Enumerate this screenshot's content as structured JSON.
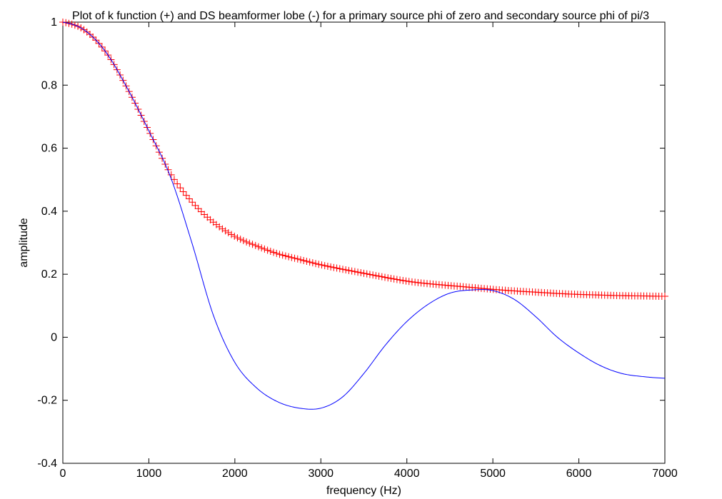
{
  "chart_data": {
    "type": "line",
    "title": "Plot of k function (+) and DS beamformer lobe (-) for a primary source phi of zero and secondary source phi of pi/3",
    "xlabel": "frequency (Hz)",
    "ylabel": "amplitude",
    "xlim": [
      0,
      7000
    ],
    "ylim": [
      -0.4,
      1
    ],
    "xticks": [
      0,
      1000,
      2000,
      3000,
      4000,
      5000,
      6000,
      7000
    ],
    "xtick_labels": [
      "0",
      "1000",
      "2000",
      "3000",
      "4000",
      "5000",
      "6000",
      "7000"
    ],
    "yticks": [
      -0.4,
      -0.2,
      0,
      0.2,
      0.4,
      0.6,
      0.8,
      1
    ],
    "ytick_labels": [
      "-0.4",
      "-0.2",
      "0",
      "0.2",
      "0.4",
      "0.6",
      "0.8",
      "1"
    ],
    "grid": false,
    "legend": "none",
    "series": [
      {
        "marker": "plus",
        "color": "#ff0000",
        "line": "none",
        "x": [
          0,
          250,
          500,
          750,
          1000,
          1250,
          1500,
          1750,
          2000,
          2250,
          2500,
          2750,
          3000,
          3250,
          3500,
          3750,
          4000,
          4250,
          4500,
          4750,
          5000,
          5250,
          5500,
          5750,
          6000,
          6250,
          6500,
          6750,
          7000
        ],
        "y": [
          1.0,
          0.975,
          0.905,
          0.79,
          0.655,
          0.52,
          0.43,
          0.365,
          0.32,
          0.29,
          0.265,
          0.247,
          0.23,
          0.216,
          0.203,
          0.19,
          0.178,
          0.17,
          0.164,
          0.158,
          0.152,
          0.147,
          0.143,
          0.139,
          0.136,
          0.134,
          0.132,
          0.131,
          0.13
        ]
      },
      {
        "marker": "none",
        "color": "#0000ff",
        "line": "solid",
        "x": [
          0,
          250,
          500,
          750,
          1000,
          1250,
          1500,
          1750,
          2000,
          2250,
          2500,
          2750,
          3000,
          3250,
          3500,
          3750,
          4000,
          4250,
          4500,
          4750,
          5000,
          5250,
          5500,
          5750,
          6000,
          6250,
          6500,
          6750,
          7000
        ],
        "y": [
          1.0,
          0.975,
          0.905,
          0.79,
          0.655,
          0.51,
          0.3,
          0.07,
          -0.08,
          -0.16,
          -0.205,
          -0.225,
          -0.225,
          -0.19,
          -0.115,
          -0.025,
          0.05,
          0.105,
          0.14,
          0.15,
          0.148,
          0.12,
          0.065,
          0.0,
          -0.05,
          -0.09,
          -0.115,
          -0.125,
          -0.13
        ]
      }
    ]
  }
}
